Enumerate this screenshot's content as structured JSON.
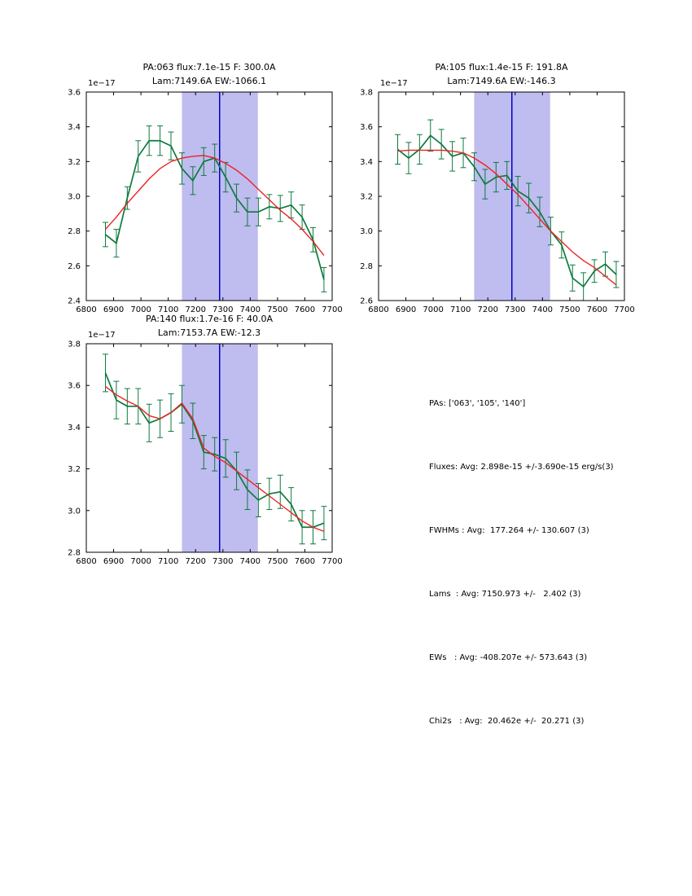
{
  "colors": {
    "data_line": "#0e7a3e",
    "fit_line": "#ee2222",
    "vline": "#0000cc",
    "band": "#bfbcf0",
    "axis": "#000000"
  },
  "chart_data": [
    {
      "type": "line",
      "title_line1": "PA:063 flux:7.1e-15 F: 300.0A",
      "title_line2": "Lam:7149.6A EW:-1066.1",
      "offset_label": "1e−17",
      "xlim": [
        6800,
        7700
      ],
      "ylim": [
        2.4,
        3.6
      ],
      "xticks": [
        6800,
        6900,
        7000,
        7100,
        7200,
        7300,
        7400,
        7500,
        7600,
        7700
      ],
      "yticks": [
        2.4,
        2.6,
        2.8,
        3.0,
        3.2,
        3.4,
        3.6
      ],
      "band": {
        "from": 7150,
        "to": 7428
      },
      "vline": 7288,
      "x_wavelength": [
        6870,
        6910,
        6950,
        6990,
        7030,
        7070,
        7110,
        7150,
        7190,
        7230,
        7270,
        7310,
        7350,
        7390,
        7430,
        7470,
        7510,
        7550,
        7590,
        7630,
        7670
      ],
      "flux": [
        2.78,
        2.73,
        2.99,
        3.23,
        3.32,
        3.32,
        3.29,
        3.16,
        3.09,
        3.2,
        3.22,
        3.11,
        2.99,
        2.91,
        2.91,
        2.94,
        2.93,
        2.95,
        2.88,
        2.75,
        2.52
      ],
      "flux_err": [
        0.07,
        0.08,
        0.065,
        0.09,
        0.085,
        0.085,
        0.08,
        0.09,
        0.08,
        0.08,
        0.08,
        0.085,
        0.08,
        0.08,
        0.08,
        0.07,
        0.075,
        0.075,
        0.07,
        0.07,
        0.07
      ],
      "fit": [
        2.81,
        2.88,
        2.96,
        3.03,
        3.1,
        3.16,
        3.2,
        3.22,
        3.23,
        3.235,
        3.22,
        3.19,
        3.15,
        3.1,
        3.04,
        2.98,
        2.92,
        2.87,
        2.81,
        2.74,
        2.66
      ]
    },
    {
      "type": "line",
      "title_line1": "PA:105 flux:1.4e-15 F: 191.8A",
      "title_line2": "Lam:7149.6A EW:-146.3",
      "offset_label": "1e−17",
      "xlim": [
        6800,
        7700
      ],
      "ylim": [
        2.6,
        3.8
      ],
      "xticks": [
        6800,
        6900,
        7000,
        7100,
        7200,
        7300,
        7400,
        7500,
        7600,
        7700
      ],
      "yticks": [
        2.6,
        2.8,
        3.0,
        3.2,
        3.4,
        3.6,
        3.8
      ],
      "band": {
        "from": 7150,
        "to": 7428
      },
      "vline": 7288,
      "x_wavelength": [
        6870,
        6910,
        6950,
        6990,
        7030,
        7070,
        7110,
        7150,
        7190,
        7230,
        7270,
        7310,
        7350,
        7390,
        7430,
        7470,
        7510,
        7550,
        7590,
        7630,
        7670
      ],
      "flux": [
        3.47,
        3.42,
        3.47,
        3.55,
        3.5,
        3.43,
        3.45,
        3.37,
        3.27,
        3.31,
        3.32,
        3.23,
        3.19,
        3.11,
        3.0,
        2.92,
        2.73,
        2.68,
        2.77,
        2.81,
        2.75
      ],
      "flux_err": [
        0.085,
        0.09,
        0.085,
        0.09,
        0.085,
        0.085,
        0.085,
        0.08,
        0.085,
        0.085,
        0.08,
        0.085,
        0.085,
        0.085,
        0.08,
        0.075,
        0.075,
        0.08,
        0.065,
        0.07,
        0.075
      ],
      "fit": [
        3.46,
        3.465,
        3.465,
        3.465,
        3.465,
        3.46,
        3.45,
        3.42,
        3.38,
        3.33,
        3.27,
        3.21,
        3.14,
        3.07,
        3.0,
        2.94,
        2.88,
        2.83,
        2.79,
        2.74,
        2.69
      ]
    },
    {
      "type": "line",
      "title_line1": "PA:140 flux:1.7e-16 F: 40.0A",
      "title_line2": "Lam:7153.7A EW:-12.3",
      "offset_label": "1e−17",
      "xlim": [
        6800,
        7700
      ],
      "ylim": [
        2.8,
        3.8
      ],
      "xticks": [
        6800,
        6900,
        7000,
        7100,
        7200,
        7300,
        7400,
        7500,
        7600,
        7700
      ],
      "yticks": [
        2.8,
        3.0,
        3.2,
        3.4,
        3.6,
        3.8
      ],
      "band": {
        "from": 7150,
        "to": 7428
      },
      "vline": 7288,
      "x_wavelength": [
        6870,
        6910,
        6950,
        6990,
        7030,
        7070,
        7110,
        7150,
        7190,
        7230,
        7270,
        7310,
        7350,
        7390,
        7430,
        7470,
        7510,
        7550,
        7590,
        7630,
        7670
      ],
      "flux": [
        3.66,
        3.53,
        3.5,
        3.5,
        3.42,
        3.44,
        3.47,
        3.51,
        3.43,
        3.28,
        3.27,
        3.25,
        3.19,
        3.1,
        3.05,
        3.08,
        3.09,
        3.03,
        2.92,
        2.92,
        2.94
      ],
      "flux_err": [
        0.09,
        0.09,
        0.085,
        0.085,
        0.09,
        0.09,
        0.09,
        0.09,
        0.085,
        0.08,
        0.08,
        0.09,
        0.09,
        0.095,
        0.08,
        0.075,
        0.08,
        0.08,
        0.08,
        0.08,
        0.08
      ],
      "fit": [
        3.595,
        3.555,
        3.525,
        3.5,
        3.455,
        3.44,
        3.47,
        3.515,
        3.44,
        3.3,
        3.26,
        3.23,
        3.19,
        3.15,
        3.11,
        3.07,
        3.03,
        2.99,
        2.95,
        2.92,
        2.9
      ]
    }
  ],
  "stats": {
    "lines": [
      "PAs: ['063', '105', '140']",
      "Fluxes: Avg: 2.898e-15 +/-3.690e-15 erg/s(3)",
      "FWHMs : Avg:  177.264 +/- 130.607 (3)",
      "Lams  : Avg: 7150.973 +/-   2.402 (3)",
      "EWs   : Avg: -408.207e +/- 573.643 (3)",
      "Chi2s   : Avg:  20.462e +/-  20.271 (3)"
    ]
  }
}
